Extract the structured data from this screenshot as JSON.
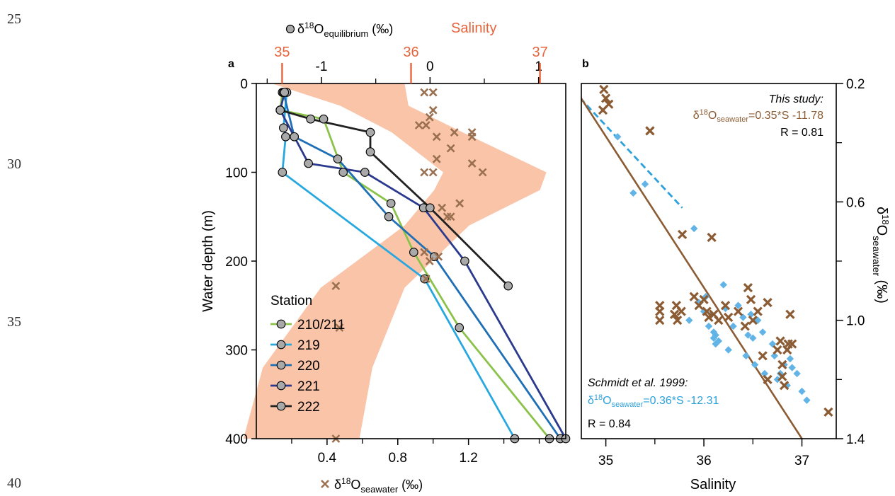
{
  "line_numbers": [
    "25",
    "30",
    "35",
    "40"
  ],
  "colors": {
    "salinity_axis": "#e8643c",
    "salinity_band": "#f9c4a8",
    "seawater_marker": "#9a7050",
    "schmidt_marker": "#62b4e6",
    "schmidt_line": "#2ea1da",
    "study_line": "#8b5c34",
    "equilibrium_marker_fill": "#a9a9a9",
    "station_210_211": "#8bc34a",
    "station_219": "#29a8e0",
    "station_220": "#1f6fb5",
    "station_221": "#2b3a8c",
    "station_222": "#222222"
  },
  "chart_data": [
    {
      "panel": "a",
      "type": "line",
      "axes": {
        "left": {
          "label": "Water depth (m)",
          "lim": [
            0,
            400
          ],
          "inverted": true,
          "ticks": [
            0,
            100,
            200,
            300,
            400
          ]
        },
        "bottom": {
          "label_base": "δ",
          "label_sup": "18",
          "label_main": "O",
          "label_sub": "seawater",
          "label_unit": " (‰)",
          "lim": [
            0,
            1.75
          ],
          "ticks": [
            0.4,
            0.8,
            1.2
          ],
          "minor_ticks": [
            0.2,
            0.6,
            1.0,
            1.4,
            1.6
          ]
        },
        "top_equilibrium": {
          "label_base": "δ",
          "label_sup": "18",
          "label_main": "O",
          "label_sub": "equilibrium",
          "label_unit": " (‰)",
          "lim": [
            -1.6,
            1.25
          ],
          "ticks": [
            -1,
            0,
            1
          ],
          "tick_labels": [
            "-1",
            "0",
            "1"
          ],
          "minor_ticks": [
            -1.5,
            -0.5,
            0.5
          ]
        },
        "top_salinity": {
          "label": "Salinity",
          "lim": [
            34.8,
            37.2
          ],
          "ticks": [
            35,
            36,
            37
          ],
          "tick_labels": [
            "35",
            "36",
            "37"
          ]
        }
      },
      "grid": false,
      "legend_title": "Station",
      "legend_placement": "bottom-left",
      "salinity_range_band": {
        "depths": [
          0,
          25,
          55,
          100,
          120,
          160,
          230,
          320,
          400
        ],
        "min": [
          34.92,
          35.45,
          35.85,
          36.25,
          36.18,
          35.95,
          35.3,
          34.85,
          34.7
        ],
        "max": [
          35.95,
          35.98,
          36.4,
          37.05,
          37.0,
          36.45,
          35.95,
          35.7,
          35.6
        ]
      },
      "seawater_points": {
        "marker": "x",
        "depth": [
          10,
          10,
          30,
          38,
          47,
          47,
          55,
          55,
          60,
          60,
          73,
          85,
          90,
          100,
          100,
          100,
          135,
          140,
          150,
          150,
          190,
          195,
          200,
          220,
          228,
          275,
          400
        ],
        "value": [
          0.95,
          1.0,
          1.0,
          0.98,
          0.96,
          0.92,
          1.12,
          1.22,
          1.02,
          1.22,
          1.1,
          1.02,
          1.22,
          0.95,
          1.0,
          1.28,
          1.15,
          1.05,
          1.08,
          1.1,
          0.95,
          1.03,
          0.98,
          0.96,
          0.45,
          0.47,
          0.45
        ]
      },
      "series": [
        {
          "name": "210/211",
          "color_key": "station_210_211",
          "depth": [
            10,
            30,
            40,
            100,
            135,
            190,
            275,
            400
          ],
          "value": [
            -1.36,
            -1.38,
            -0.98,
            -0.8,
            -0.36,
            -0.15,
            0.27,
            1.1
          ]
        },
        {
          "name": "219",
          "color_key": "station_219",
          "depth": [
            10,
            50,
            60,
            100,
            220,
            400
          ],
          "value": [
            -1.32,
            -1.35,
            -1.33,
            -1.36,
            -0.05,
            0.78
          ]
        },
        {
          "name": "220",
          "color_key": "station_220",
          "depth": [
            10,
            60,
            85,
            150,
            195,
            400
          ],
          "value": [
            -1.35,
            -1.25,
            -0.85,
            -0.38,
            0.04,
            1.2
          ]
        },
        {
          "name": "221",
          "color_key": "station_221",
          "depth": [
            10,
            30,
            90,
            100,
            140,
            200,
            400
          ],
          "value": [
            -1.34,
            -1.38,
            -1.12,
            -0.6,
            -0.06,
            0.32,
            1.25
          ]
        },
        {
          "name": "222",
          "color_key": "station_222",
          "depth": [
            30,
            40,
            55,
            77,
            140,
            228
          ],
          "value": [
            -1.38,
            -1.1,
            -0.55,
            -0.55,
            0.0,
            0.72
          ]
        }
      ]
    },
    {
      "panel": "b",
      "type": "scatter",
      "axes": {
        "bottom": {
          "label": "Salinity",
          "lim": [
            34.75,
            37.35
          ],
          "ticks": [
            35,
            36,
            37
          ],
          "tick_labels": [
            "35",
            "36",
            "37"
          ],
          "minor_ticks": [
            35.5,
            36.5
          ]
        },
        "right": {
          "label_base": "δ",
          "label_sup": "18",
          "label_main": "O",
          "label_sub": "seawater",
          "label_unit": " (‰)",
          "lim": [
            0.2,
            1.4
          ],
          "inverted": true,
          "ticks": [
            0.2,
            0.6,
            1.0,
            1.4
          ],
          "tick_labels": [
            "0.2",
            "0.6",
            "1.0",
            "1.4"
          ],
          "minor_ticks": [
            0.4,
            0.8,
            1.2
          ]
        }
      },
      "grid": false,
      "this_study": {
        "heading": "This study:",
        "equation_base": "δ",
        "equation_sup": "18",
        "equation_main": "O",
        "equation_sub": "seawater",
        "equation_rest": "=0.35*S -11.78",
        "r_text": "R = 0.81",
        "line": {
          "salinity": [
            34.65,
            37.0
          ],
          "d18o": [
            0.2,
            1.4
          ]
        },
        "points": {
          "marker": "x",
          "salinity": [
            34.98,
            35.0,
            35.03,
            34.97,
            35.45,
            35.78,
            36.08,
            35.55,
            35.55,
            35.55,
            35.72,
            35.7,
            35.73,
            35.77,
            35.9,
            35.95,
            36.0,
            36.03,
            36.05,
            36.1,
            36.15,
            36.22,
            36.25,
            36.35,
            36.42,
            36.45,
            36.48,
            36.5,
            36.55,
            36.6,
            36.65,
            36.65,
            36.75,
            36.78,
            36.8,
            36.8,
            36.82,
            36.85,
            36.86,
            36.88,
            36.9,
            37.27
          ],
          "d18o": [
            0.22,
            0.25,
            0.27,
            0.29,
            0.36,
            0.71,
            0.72,
            0.95,
            0.97,
            1.0,
            0.95,
            0.98,
            1.0,
            0.97,
            0.92,
            0.95,
            0.93,
            0.97,
            0.99,
            0.98,
            1.0,
            0.95,
            0.99,
            0.97,
            1.02,
            0.89,
            0.93,
            1.0,
            0.97,
            1.12,
            0.94,
            1.2,
            1.1,
            1.07,
            1.19,
            1.15,
            1.22,
            1.1,
            1.08,
            0.98,
            1.08,
            1.31
          ]
        }
      },
      "schmidt": {
        "heading": "Schmidt et al. 1999:",
        "equation_base": "δ",
        "equation_sup": "18",
        "equation_main": "O",
        "equation_sub": "seawater",
        "equation_rest": "=0.36*S -12.31",
        "r_text": "R = 0.84",
        "line": {
          "salinity": [
            34.6,
            35.78
          ],
          "d18o": [
            0.2,
            0.62
          ]
        },
        "points": {
          "marker": "diamond",
          "salinity": [
            35.12,
            35.28,
            35.4,
            35.9,
            35.95,
            36.0,
            36.02,
            36.05,
            36.08,
            36.1,
            36.12,
            36.1,
            36.12,
            36.15,
            36.2,
            36.22,
            36.25,
            36.3,
            36.35,
            36.4,
            36.43,
            36.45,
            36.48,
            36.5,
            36.52,
            36.55,
            36.6,
            36.62,
            36.7,
            36.72,
            36.75,
            36.78,
            36.82,
            36.85,
            36.88,
            36.9,
            36.95,
            37.0,
            37.05,
            35.85
          ],
          "d18o": [
            0.38,
            0.57,
            0.54,
            0.69,
            0.94,
            0.97,
            0.92,
            1.02,
            0.98,
            1.04,
            1.05,
            1.06,
            1.08,
            1.07,
            0.88,
            0.96,
            1.1,
            1.02,
            0.95,
            0.99,
            1.12,
            1.05,
            0.98,
            1.06,
            1.15,
            1.0,
            1.04,
            1.18,
            1.08,
            1.12,
            1.2,
            1.18,
            1.15,
            1.22,
            1.13,
            1.16,
            1.18,
            1.24,
            1.27,
            1.0
          ]
        }
      }
    }
  ]
}
